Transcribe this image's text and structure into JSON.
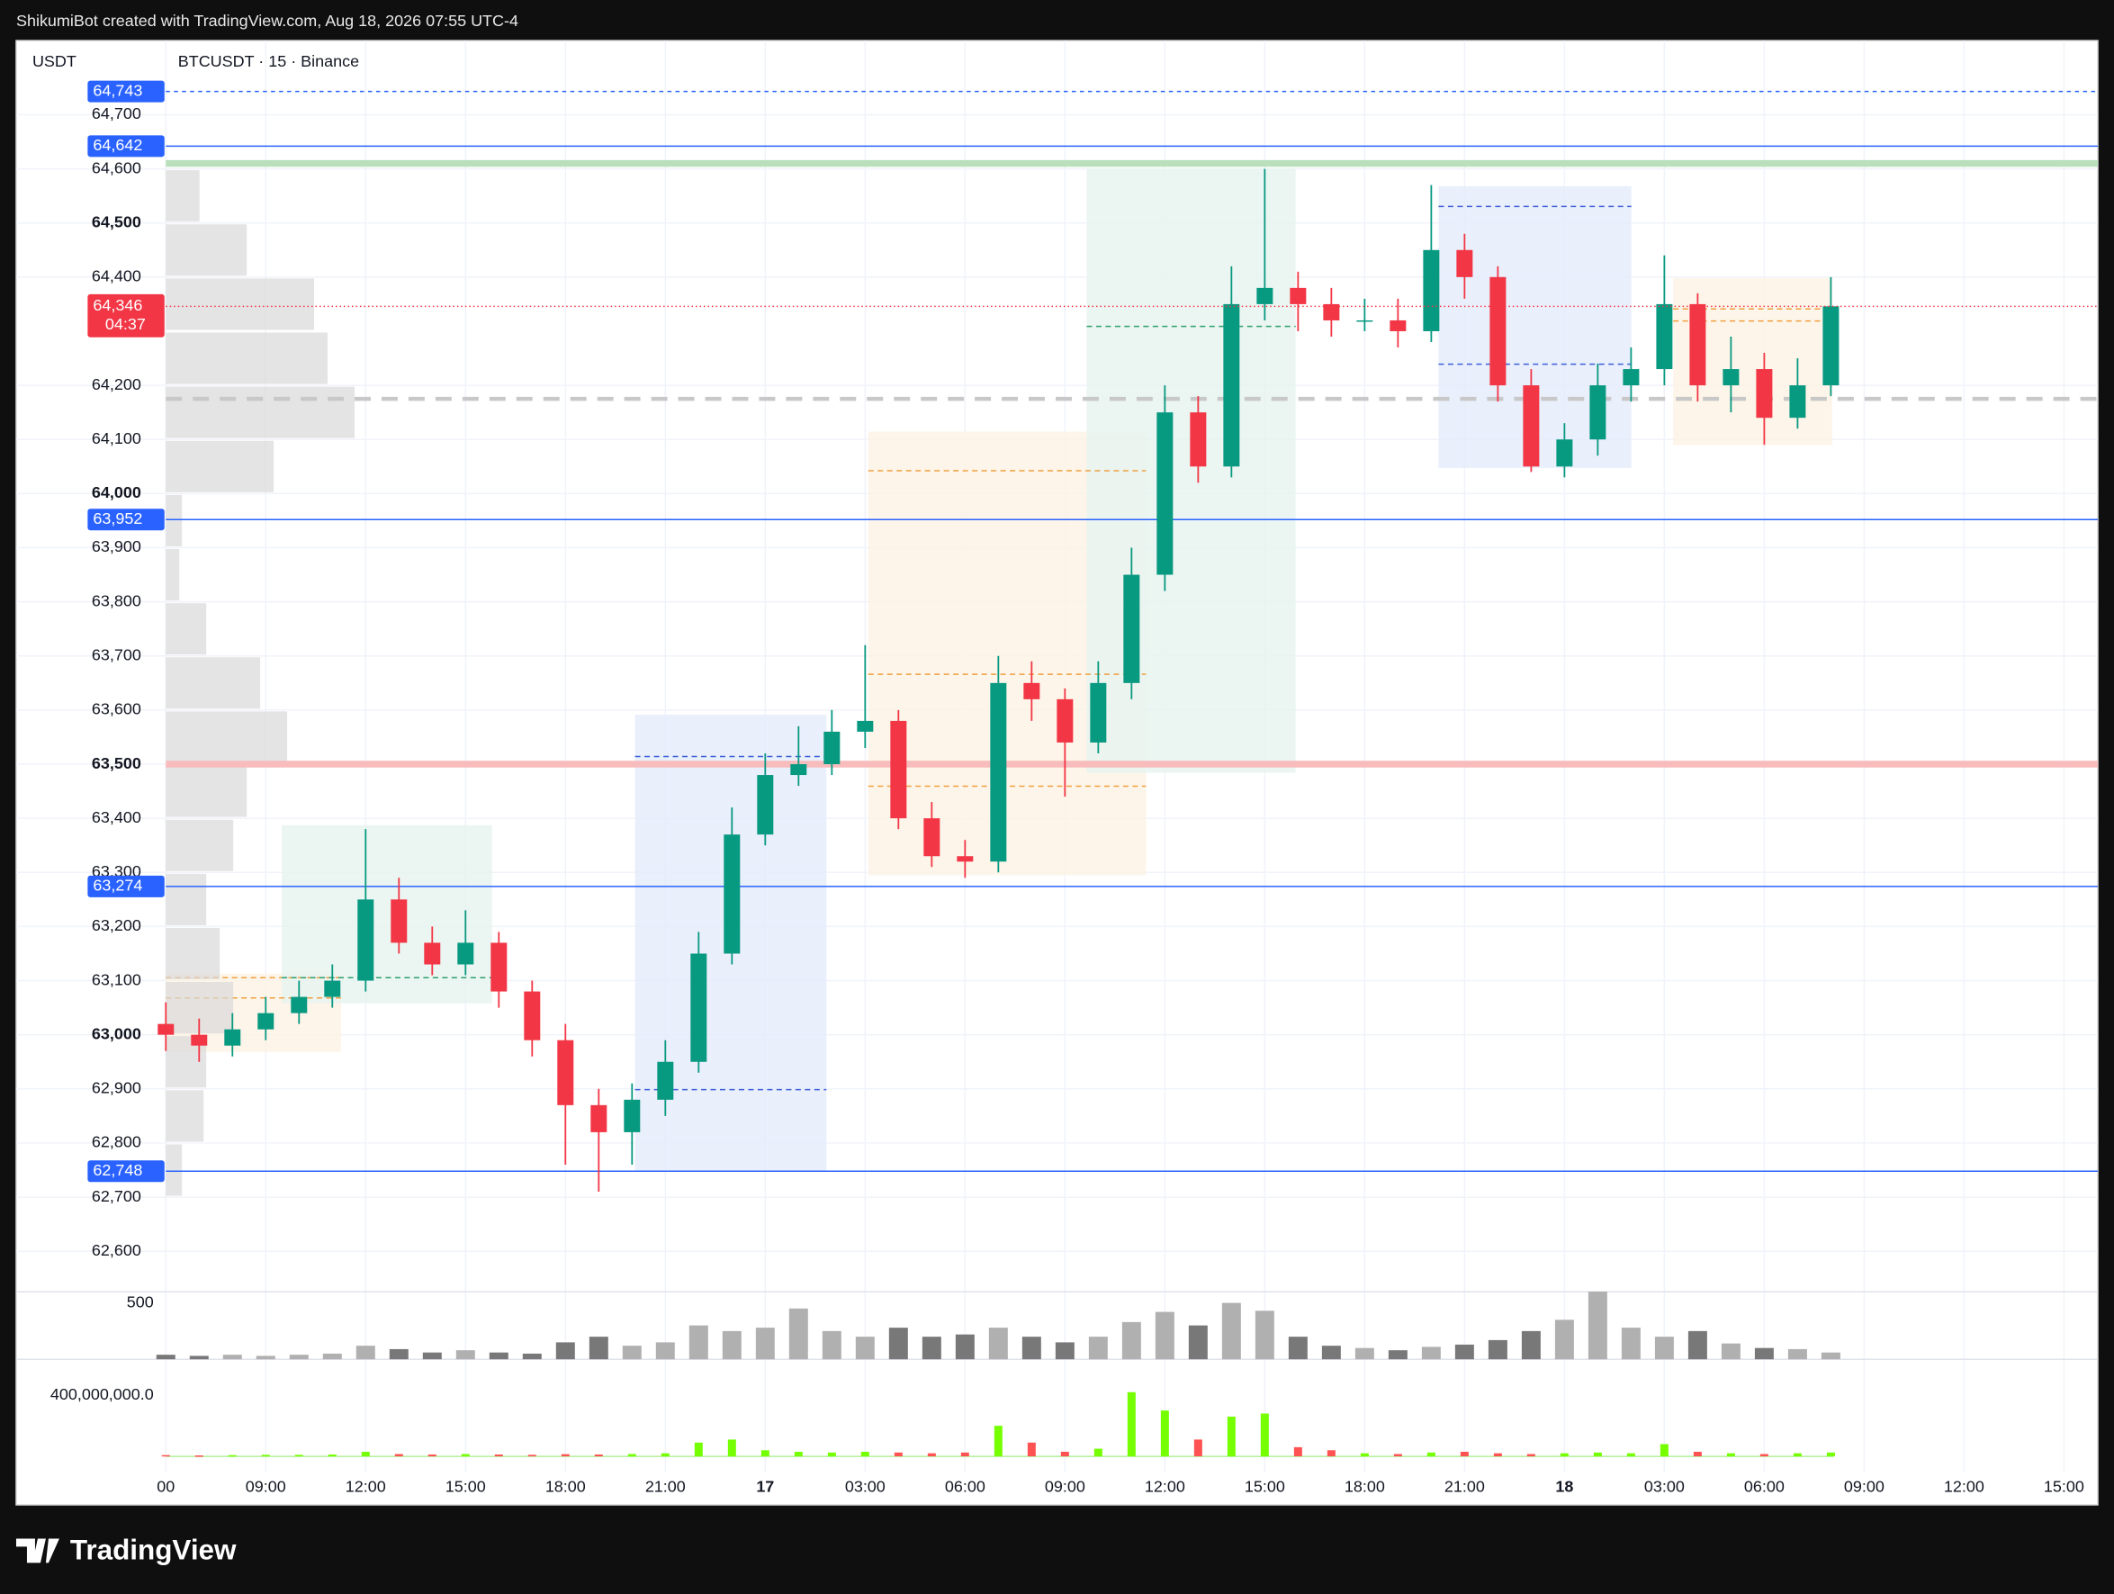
{
  "header": {
    "caption": "ShikumiBot created with TradingView.com, Aug 18, 2026 07:55 UTC-4",
    "currency": "USDT",
    "symbol": "BTCUSDT · 15 · Binance",
    "brand": "TradingView"
  },
  "chart_data": {
    "type": "candlestick",
    "open": [
      63020,
      63000,
      62980,
      63010,
      63040,
      63070,
      63100,
      63250,
      63170,
      63130,
      63170,
      63080,
      62990,
      62870,
      62820,
      62880,
      62950,
      63150,
      63370,
      63480,
      63500,
      63560,
      63580,
      63400,
      63330,
      63320,
      63650,
      63620,
      63540,
      63650,
      63850,
      64150,
      64050,
      64350,
      64380,
      64350,
      64320,
      64320,
      64300,
      64450,
      64400,
      64200,
      64050,
      64100,
      64200,
      64230,
      64350,
      64200,
      64230,
      64140,
      64200
    ],
    "high": [
      63060,
      63030,
      63040,
      63070,
      63100,
      63130,
      63380,
      63290,
      63200,
      63230,
      63190,
      63100,
      63020,
      62900,
      62910,
      62990,
      63190,
      63420,
      63520,
      63570,
      63600,
      63720,
      63600,
      63430,
      63360,
      63700,
      63690,
      63640,
      63690,
      63900,
      64200,
      64180,
      64420,
      64600,
      64410,
      64380,
      64360,
      64360,
      64570,
      64480,
      64420,
      64230,
      64130,
      64240,
      64270,
      64440,
      64370,
      64290,
      64260,
      64250,
      64400
    ],
    "low": [
      62970,
      62950,
      62960,
      62990,
      63020,
      63050,
      63080,
      63150,
      63110,
      63110,
      63050,
      62960,
      62760,
      62710,
      62760,
      62850,
      62930,
      63130,
      63350,
      63460,
      63480,
      63530,
      63380,
      63310,
      63290,
      63300,
      63580,
      63440,
      63520,
      63620,
      63820,
      64020,
      64030,
      64320,
      64300,
      64290,
      64300,
      64270,
      64280,
      64360,
      64170,
      64040,
      64030,
      64070,
      64170,
      64200,
      64170,
      64150,
      64090,
      64120,
      64180
    ],
    "close": [
      63000,
      62980,
      63010,
      63040,
      63070,
      63100,
      63250,
      63170,
      63130,
      63170,
      63080,
      62990,
      62870,
      62820,
      62880,
      62950,
      63150,
      63370,
      63480,
      63500,
      63560,
      63580,
      63400,
      63330,
      63320,
      63650,
      63620,
      63540,
      63650,
      63850,
      64150,
      64050,
      64350,
      64380,
      64350,
      64320,
      64320,
      64300,
      64450,
      64400,
      64200,
      64050,
      64100,
      64200,
      64230,
      64350,
      64200,
      64230,
      64140,
      64200,
      64346
    ],
    "up_color": "#089981",
    "down_color": "#f23645",
    "ylim": [
      62525,
      64837
    ],
    "yticks": [
      {
        "value": 64700,
        "label": "64,700"
      },
      {
        "value": 64600,
        "label": "64,600"
      },
      {
        "value": 64500,
        "label": "64,500",
        "bold": true
      },
      {
        "value": 64400,
        "label": "64,400"
      },
      {
        "value": 64200,
        "label": "64,200"
      },
      {
        "value": 64100,
        "label": "64,100"
      },
      {
        "value": 64000,
        "label": "64,000",
        "bold": true
      },
      {
        "value": 63900,
        "label": "63,900"
      },
      {
        "value": 63800,
        "label": "63,800"
      },
      {
        "value": 63700,
        "label": "63,700"
      },
      {
        "value": 63600,
        "label": "63,600"
      },
      {
        "value": 63500,
        "label": "63,500",
        "bold": true
      },
      {
        "value": 63400,
        "label": "63,400"
      },
      {
        "value": 63300,
        "label": "63,300"
      },
      {
        "value": 63200,
        "label": "63,200"
      },
      {
        "value": 63100,
        "label": "63,100"
      },
      {
        "value": 63000,
        "label": "63,000",
        "bold": true
      },
      {
        "value": 62900,
        "label": "62,900"
      },
      {
        "value": 62800,
        "label": "62,800"
      },
      {
        "value": 62700,
        "label": "62,700"
      },
      {
        "value": 62600,
        "label": "62,600"
      }
    ],
    "xticks": [
      "00",
      "09:00",
      "12:00",
      "15:00",
      "18:00",
      "21:00",
      "17",
      "03:00",
      "06:00",
      "09:00",
      "12:00",
      "15:00",
      "18:00",
      "21:00",
      "18",
      "03:00",
      "06:00",
      "09:00",
      "12:00",
      "15:00"
    ],
    "grid": true,
    "levels": {
      "values": [
        64743,
        64642,
        63952,
        63274,
        62748
      ],
      "value_labels": [
        "64,743",
        "64,642",
        "63,952",
        "63,274",
        "62,748"
      ],
      "color": "#2962ff"
    },
    "current_price": {
      "value": 64346,
      "label": "64,346",
      "countdown": "04:37",
      "color": "#f23645"
    },
    "bands": [
      {
        "value": 64610,
        "color": "#b9e0bb"
      },
      {
        "value": 63500,
        "color": "#f8bcbc"
      }
    ],
    "poc": 64175,
    "volume_profile": {
      "prices": [
        62750,
        62850,
        62950,
        63050,
        63150,
        63250,
        63350,
        63450,
        63550,
        63650,
        63750,
        63850,
        63950,
        64050,
        64150,
        64250,
        64350,
        64450,
        64550
      ],
      "values": [
        12,
        28,
        30,
        50,
        40,
        30,
        50,
        60,
        90,
        70,
        30,
        10,
        12,
        80,
        140,
        120,
        110,
        60,
        25
      ],
      "xlim": [
        0,
        200
      ]
    },
    "volume": {
      "values": [
        40,
        30,
        40,
        30,
        40,
        50,
        120,
        90,
        60,
        80,
        60,
        50,
        150,
        200,
        120,
        150,
        300,
        250,
        280,
        450,
        250,
        200,
        280,
        200,
        220,
        280,
        200,
        150,
        200,
        330,
        420,
        300,
        500,
        430,
        200,
        120,
        100,
        80,
        110,
        130,
        170,
        250,
        350,
        600,
        280,
        200,
        250,
        140,
        100,
        90,
        60
      ],
      "ylim": [
        0,
        550
      ],
      "yticks": [
        500
      ]
    },
    "indicator": {
      "values": [
        8000000,
        6000000,
        8000000,
        10000000,
        10000000,
        12000000,
        30000000,
        15000000,
        12000000,
        15000000,
        12000000,
        10000000,
        14000000,
        12000000,
        15000000,
        20000000,
        90000000,
        110000000,
        40000000,
        30000000,
        25000000,
        30000000,
        25000000,
        20000000,
        25000000,
        200000000,
        90000000,
        30000000,
        50000000,
        420000000,
        300000000,
        110000000,
        260000000,
        280000000,
        60000000,
        40000000,
        20000000,
        15000000,
        25000000,
        30000000,
        20000000,
        15000000,
        20000000,
        25000000,
        20000000,
        80000000,
        30000000,
        20000000,
        15000000,
        20000000,
        25000000
      ],
      "ylim": [
        0,
        600000000
      ],
      "yticks": [
        {
          "value": 400000000,
          "label": "400,000,000.0"
        }
      ],
      "up_color": "#76ff03",
      "down_color": "#ff5252"
    }
  }
}
